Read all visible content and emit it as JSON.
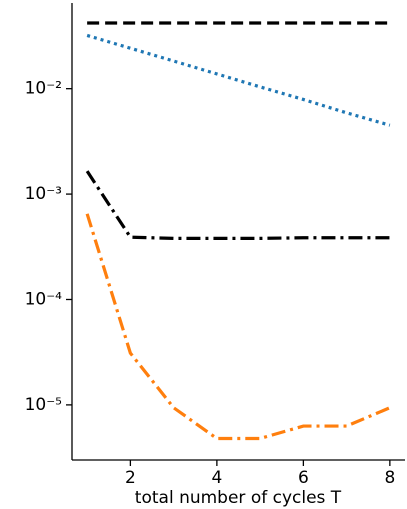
{
  "chart_data": {
    "type": "line",
    "x_label": "total number of cycles T",
    "x": [
      1,
      2,
      3,
      4,
      5,
      6,
      7,
      8
    ],
    "series": [
      {
        "color": "#000000",
        "style": "dashed",
        "values": [
          0.042,
          0.042,
          0.042,
          0.042,
          0.042,
          0.042,
          0.042,
          0.042
        ]
      },
      {
        "color": "#1f77b4",
        "style": "dotted",
        "values": [
          0.032,
          0.0242,
          0.0183,
          0.0138,
          0.0104,
          0.0079,
          0.0059,
          0.0045
        ]
      },
      {
        "color": "#000000",
        "style": "dashdot",
        "values": [
          0.00165,
          0.00039,
          0.00038,
          0.00038,
          0.00038,
          0.000385,
          0.000385,
          0.000385
        ]
      },
      {
        "color": "#ff7f0e",
        "style": "dashdot",
        "values": [
          0.00065,
          3.1e-05,
          9.4e-06,
          4.8e-06,
          4.8e-06,
          6.3e-06,
          6.3e-06,
          9.4e-06
        ]
      }
    ],
    "xlim": [
      0.65,
      8.35
    ],
    "xticks": [
      2,
      4,
      6,
      8
    ],
    "ylim": [
      3e-06,
      0.065
    ],
    "log_y": true,
    "yticks": [
      {
        "value": 0.01,
        "label": "10⁻²"
      },
      {
        "value": 0.001,
        "label": "10⁻³"
      },
      {
        "value": 0.0001,
        "label": "10⁻⁴"
      },
      {
        "value": 1e-05,
        "label": "10⁻⁵"
      }
    ],
    "grid": false
  }
}
